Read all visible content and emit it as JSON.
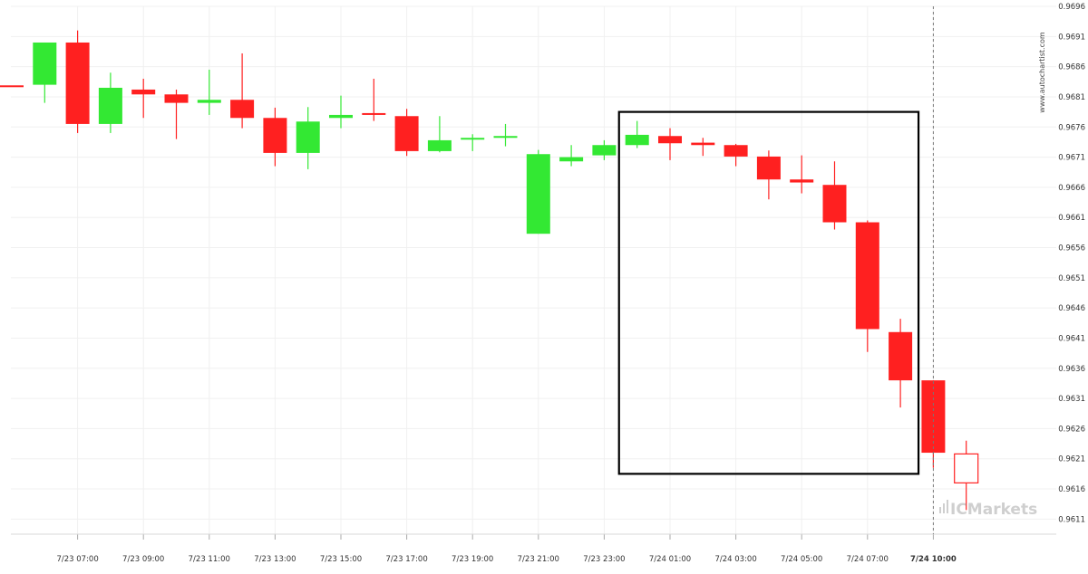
{
  "chart_data": {
    "type": "candlestick",
    "watermark_text": "www.autochartist.com",
    "brand": {
      "logo_text": "ICMarkets"
    },
    "y_ticks": [
      "0.9696",
      "0.9691",
      "0.9686",
      "0.9681",
      "0.9676",
      "0.9671",
      "0.9666",
      "0.9661",
      "0.9656",
      "0.9651",
      "0.9646",
      "0.9641",
      "0.9636",
      "0.9631",
      "0.9626",
      "0.9621",
      "0.9616",
      "0.9611"
    ],
    "ylim": [
      0.96085,
      0.9696
    ],
    "x_ticks": [
      {
        "label": "7/23 07:00",
        "index": 2
      },
      {
        "label": "7/23 09:00",
        "index": 4
      },
      {
        "label": "7/23 11:00",
        "index": 6
      },
      {
        "label": "7/23 13:00",
        "index": 8
      },
      {
        "label": "7/23 15:00",
        "index": 10
      },
      {
        "label": "7/23 17:00",
        "index": 12
      },
      {
        "label": "7/23 19:00",
        "index": 14
      },
      {
        "label": "7/23 21:00",
        "index": 16
      },
      {
        "label": "7/23 23:00",
        "index": 18
      },
      {
        "label": "7/24 01:00",
        "index": 20
      },
      {
        "label": "7/24 03:00",
        "index": 22
      },
      {
        "label": "7/24 05:00",
        "index": 24
      },
      {
        "label": "7/24 07:00",
        "index": 26
      },
      {
        "label": "7/24 10:00",
        "index": 28,
        "bold": true
      }
    ],
    "candles": [
      {
        "o": 0.96829,
        "h": 0.96829,
        "l": 0.96829,
        "c": 0.96829,
        "color": "red"
      },
      {
        "o": 0.9683,
        "h": 0.969,
        "l": 0.968,
        "c": 0.969,
        "color": "green"
      },
      {
        "o": 0.969,
        "h": 0.9692,
        "l": 0.9675,
        "c": 0.96765,
        "color": "red"
      },
      {
        "o": 0.96765,
        "h": 0.9685,
        "l": 0.9675,
        "c": 0.96825,
        "color": "green"
      },
      {
        "o": 0.96822,
        "h": 0.9684,
        "l": 0.96775,
        "c": 0.96814,
        "color": "red"
      },
      {
        "o": 0.96814,
        "h": 0.96822,
        "l": 0.9674,
        "c": 0.968,
        "color": "red"
      },
      {
        "o": 0.968,
        "h": 0.96855,
        "l": 0.9678,
        "c": 0.96805,
        "color": "green"
      },
      {
        "o": 0.96805,
        "h": 0.96882,
        "l": 0.96758,
        "c": 0.96775,
        "color": "red"
      },
      {
        "o": 0.96775,
        "h": 0.96792,
        "l": 0.96695,
        "c": 0.96717,
        "color": "red"
      },
      {
        "o": 0.96717,
        "h": 0.96793,
        "l": 0.9669,
        "c": 0.96769,
        "color": "green"
      },
      {
        "o": 0.96775,
        "h": 0.96812,
        "l": 0.96758,
        "c": 0.9678,
        "color": "green"
      },
      {
        "o": 0.96783,
        "h": 0.9684,
        "l": 0.9677,
        "c": 0.96783,
        "color": "red"
      },
      {
        "o": 0.96778,
        "h": 0.9679,
        "l": 0.96712,
        "c": 0.9672,
        "color": "red"
      },
      {
        "o": 0.9672,
        "h": 0.96778,
        "l": 0.96718,
        "c": 0.96738,
        "color": "green"
      },
      {
        "o": 0.9674,
        "h": 0.96748,
        "l": 0.9672,
        "c": 0.96742,
        "color": "green"
      },
      {
        "o": 0.96745,
        "h": 0.96765,
        "l": 0.96728,
        "c": 0.96745,
        "color": "green"
      },
      {
        "o": 0.96583,
        "h": 0.96722,
        "l": 0.96583,
        "c": 0.96715,
        "color": "green"
      },
      {
        "o": 0.96703,
        "h": 0.9673,
        "l": 0.96695,
        "c": 0.9671,
        "color": "green"
      },
      {
        "o": 0.96713,
        "h": 0.96738,
        "l": 0.96705,
        "c": 0.9673,
        "color": "green"
      },
      {
        "o": 0.9673,
        "h": 0.9677,
        "l": 0.96725,
        "c": 0.96747,
        "color": "green"
      },
      {
        "o": 0.96745,
        "h": 0.96758,
        "l": 0.96705,
        "c": 0.96733,
        "color": "red"
      },
      {
        "o": 0.96734,
        "h": 0.96742,
        "l": 0.96712,
        "c": 0.9673,
        "color": "red"
      },
      {
        "o": 0.9673,
        "h": 0.96732,
        "l": 0.96695,
        "c": 0.96711,
        "color": "red"
      },
      {
        "o": 0.96711,
        "h": 0.96721,
        "l": 0.9664,
        "c": 0.96673,
        "color": "red"
      },
      {
        "o": 0.96673,
        "h": 0.96713,
        "l": 0.9665,
        "c": 0.96668,
        "color": "red"
      },
      {
        "o": 0.96664,
        "h": 0.96703,
        "l": 0.9659,
        "c": 0.96602,
        "color": "red"
      },
      {
        "o": 0.96602,
        "h": 0.96605,
        "l": 0.96387,
        "c": 0.96425,
        "color": "red"
      },
      {
        "o": 0.9642,
        "h": 0.96442,
        "l": 0.96295,
        "c": 0.9634,
        "color": "red"
      },
      {
        "o": 0.9634,
        "h": 0.9634,
        "l": 0.96195,
        "c": 0.9622,
        "color": "red"
      },
      {
        "o": 0.96218,
        "h": 0.9624,
        "l": 0.96125,
        "c": 0.9617,
        "color": "hollow"
      }
    ],
    "pattern_box": {
      "start_index": 18.45,
      "end_index": 27.55,
      "top": 0.96785,
      "bottom": 0.96185
    },
    "current_time_index": 28,
    "colors": {
      "up": "#33e833",
      "down": "#ff2020",
      "box": "#000000",
      "dashed": "#777777"
    }
  }
}
